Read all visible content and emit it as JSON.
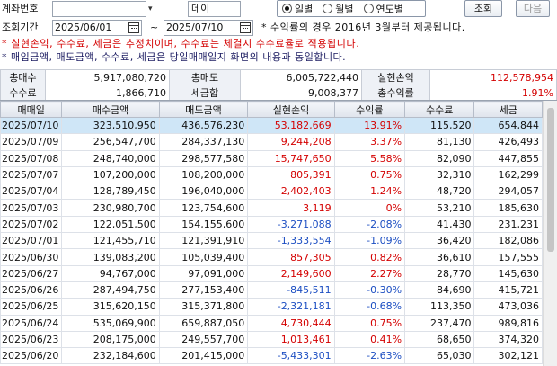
{
  "header": {
    "account_label": "계좌번호",
    "account_name": "데이",
    "radios": [
      {
        "label": "일별",
        "checked": true
      },
      {
        "label": "월별",
        "checked": false
      },
      {
        "label": "연도별",
        "checked": false
      }
    ],
    "query_label": "조회",
    "next_label": "다음"
  },
  "period": {
    "label": "조회기간",
    "start": "2025/06/01",
    "end": "2025/07/10",
    "tilde": "~",
    "note": "* 수익률의 경우 2016년 3월부터 제공됩니다."
  },
  "notes": {
    "red": "* 실현손익, 수수료, 세금은 추정치이며, 수수료는 체결시 수수료율로 적용됩니다.",
    "blue": "* 매입금액, 매도금액, 수수료, 세금은 당일매매일지 화면의 내용과 동일합니다."
  },
  "summary": {
    "row1": {
      "l1": "총매수",
      "v1": "5,917,080,720",
      "l2": "총매도",
      "v2": "6,005,722,440",
      "l3": "실현손익",
      "v3": "112,578,954"
    },
    "row2": {
      "l1": "수수료",
      "v1": "1,866,710",
      "l2": "세금합",
      "v2": "9,008,377",
      "l3": "총수익률",
      "v3": "1.91%"
    }
  },
  "grid": {
    "columns": [
      "매매일",
      "매수금액",
      "매도금액",
      "실현손익",
      "수익률",
      "수수료",
      "세금"
    ],
    "rows": [
      {
        "date": "2025/07/10",
        "buy": "323,510,950",
        "sell": "436,576,230",
        "pl": "53,182,669",
        "rate": "13.91%",
        "fee": "115,520",
        "tax": "654,844",
        "sign": "pos"
      },
      {
        "date": "2025/07/09",
        "buy": "256,547,700",
        "sell": "284,337,130",
        "pl": "9,244,208",
        "rate": "3.37%",
        "fee": "81,130",
        "tax": "426,493",
        "sign": "pos"
      },
      {
        "date": "2025/07/08",
        "buy": "248,740,000",
        "sell": "298,577,580",
        "pl": "15,747,650",
        "rate": "5.58%",
        "fee": "82,090",
        "tax": "447,855",
        "sign": "pos"
      },
      {
        "date": "2025/07/07",
        "buy": "107,200,000",
        "sell": "108,200,000",
        "pl": "805,391",
        "rate": "0.75%",
        "fee": "32,310",
        "tax": "162,299",
        "sign": "pos"
      },
      {
        "date": "2025/07/04",
        "buy": "128,789,450",
        "sell": "196,040,000",
        "pl": "2,402,403",
        "rate": "1.24%",
        "fee": "48,720",
        "tax": "294,057",
        "sign": "pos"
      },
      {
        "date": "2025/07/03",
        "buy": "230,980,700",
        "sell": "123,754,600",
        "pl": "3,119",
        "rate": "0%",
        "fee": "53,210",
        "tax": "185,630",
        "sign": "pos"
      },
      {
        "date": "2025/07/02",
        "buy": "122,051,500",
        "sell": "154,155,600",
        "pl": "-3,271,088",
        "rate": "-2.08%",
        "fee": "41,430",
        "tax": "231,231",
        "sign": "neg"
      },
      {
        "date": "2025/07/01",
        "buy": "121,455,710",
        "sell": "121,391,910",
        "pl": "-1,333,554",
        "rate": "-1.09%",
        "fee": "36,420",
        "tax": "182,086",
        "sign": "neg"
      },
      {
        "date": "2025/06/30",
        "buy": "139,083,200",
        "sell": "105,039,400",
        "pl": "857,305",
        "rate": "0.82%",
        "fee": "36,610",
        "tax": "157,555",
        "sign": "pos"
      },
      {
        "date": "2025/06/27",
        "buy": "94,767,000",
        "sell": "97,091,000",
        "pl": "2,149,600",
        "rate": "2.27%",
        "fee": "28,770",
        "tax": "145,630",
        "sign": "pos"
      },
      {
        "date": "2025/06/26",
        "buy": "287,494,750",
        "sell": "277,153,400",
        "pl": "-845,511",
        "rate": "-0.30%",
        "fee": "84,690",
        "tax": "415,721",
        "sign": "neg"
      },
      {
        "date": "2025/06/25",
        "buy": "315,620,150",
        "sell": "315,371,800",
        "pl": "-2,321,181",
        "rate": "-0.68%",
        "fee": "113,350",
        "tax": "473,036",
        "sign": "neg"
      },
      {
        "date": "2025/06/24",
        "buy": "535,069,900",
        "sell": "659,887,050",
        "pl": "4,730,444",
        "rate": "0.75%",
        "fee": "237,470",
        "tax": "989,816",
        "sign": "pos"
      },
      {
        "date": "2025/06/23",
        "buy": "208,175,000",
        "sell": "249,557,700",
        "pl": "1,013,461",
        "rate": "0.41%",
        "fee": "68,650",
        "tax": "374,320",
        "sign": "pos"
      },
      {
        "date": "2025/06/20",
        "buy": "232,184,600",
        "sell": "201,415,000",
        "pl": "-5,433,301",
        "rate": "-2.63%",
        "fee": "65,030",
        "tax": "302,121",
        "sign": "neg"
      }
    ]
  }
}
